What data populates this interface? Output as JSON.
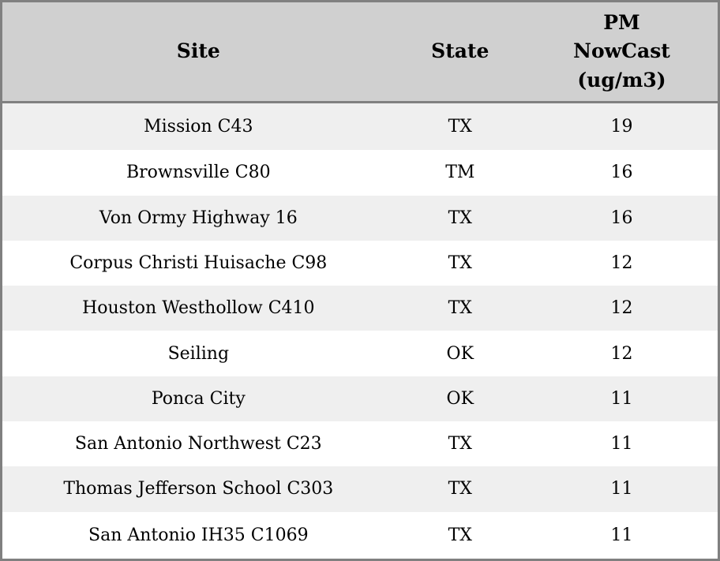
{
  "chart_data": {
    "type": "table",
    "columns": [
      "Site",
      "State",
      "PM\nNowCast\n(ug/m3)"
    ],
    "rows": [
      [
        "Mission C43",
        "TX",
        19
      ],
      [
        "Brownsville C80",
        "TM",
        16
      ],
      [
        "Von Ormy Highway 16",
        "TX",
        16
      ],
      [
        "Corpus Christi Huisache C98",
        "TX",
        12
      ],
      [
        "Houston Westhollow C410",
        "TX",
        12
      ],
      [
        "Seiling",
        "OK",
        12
      ],
      [
        "Ponca City",
        "OK",
        11
      ],
      [
        "San Antonio Northwest C23",
        "TX",
        11
      ],
      [
        "Thomas Jefferson School C303",
        "TX",
        11
      ],
      [
        "San Antonio IH35 C1069",
        "TX",
        11
      ]
    ]
  },
  "colors": {
    "header_bg": "#d0d0d0",
    "row_odd_bg": "#efefef",
    "row_even_bg": "#ffffff",
    "border": "#808080",
    "text": "#000000"
  }
}
